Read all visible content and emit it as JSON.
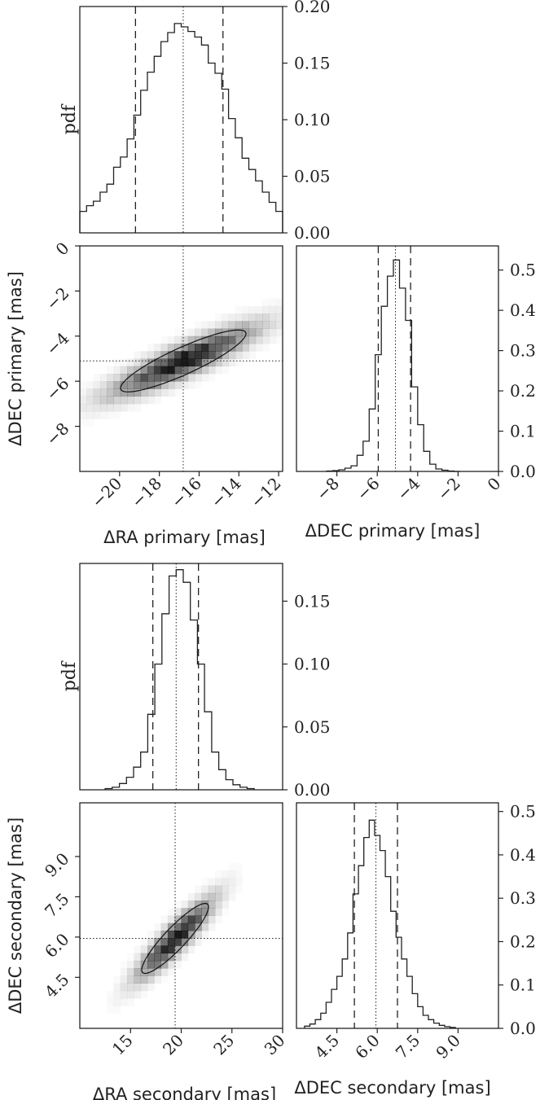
{
  "colors": {
    "ink": "#222222",
    "frame": "#111111",
    "density": "#000000"
  },
  "chart_data": [
    {
      "id": "primary",
      "panels": {
        "ra_hist": {
          "type": "histogram",
          "ylabel": "pdf",
          "xlim": [
            -22,
            -11.8
          ],
          "ylim": [
            0,
            0.2
          ],
          "yticks": [
            0.0,
            0.05,
            0.1,
            0.15,
            0.2
          ],
          "yticklabels": [
            "0.00",
            "0.05",
            "0.10",
            "0.15",
            "0.20"
          ],
          "bin_edges": [
            -22,
            -21.66,
            -21.32,
            -20.98,
            -20.64,
            -20.3,
            -19.96,
            -19.62,
            -19.28,
            -18.94,
            -18.6,
            -18.26,
            -17.92,
            -17.58,
            -17.24,
            -16.9,
            -16.56,
            -16.22,
            -15.88,
            -15.54,
            -15.2,
            -14.86,
            -14.52,
            -14.18,
            -13.84,
            -13.5,
            -13.16,
            -12.82,
            -12.48,
            -12.14,
            -11.8
          ],
          "values": [
            0.019,
            0.024,
            0.028,
            0.036,
            0.043,
            0.058,
            0.067,
            0.083,
            0.104,
            0.126,
            0.142,
            0.156,
            0.169,
            0.177,
            0.185,
            0.182,
            0.178,
            0.173,
            0.166,
            0.15,
            0.141,
            0.127,
            0.101,
            0.084,
            0.066,
            0.056,
            0.046,
            0.036,
            0.027,
            0.019
          ],
          "median": -16.8,
          "interval": [
            -19.2,
            -14.8
          ]
        },
        "joint": {
          "type": "heatmap",
          "xlabel": "ΔRA primary [mas]",
          "ylabel": "ΔDEC primary [mas]",
          "xlim": [
            -22,
            -11.8
          ],
          "ylim": [
            -10,
            0
          ],
          "xticks": [
            -20,
            -18,
            -16,
            -14,
            -12
          ],
          "yticks": [
            0,
            -2,
            -4,
            -6,
            -8
          ],
          "xticklabels": [
            "−20",
            "−18",
            "−16",
            "−14",
            "−12"
          ],
          "yticklabels": [
            "0",
            "−2",
            "−4",
            "−6",
            "−8"
          ],
          "center": [
            -16.8,
            -5.1
          ],
          "sigma": [
            2.3,
            1.0
          ],
          "rho": 0.88,
          "contour_level": 0.39,
          "marker_x": -16.8,
          "marker_y": -5.1
        },
        "dec_hist": {
          "type": "histogram",
          "xlabel": "ΔDEC primary [mas]",
          "xlim": [
            -10,
            0
          ],
          "ylim": [
            0,
            0.56
          ],
          "xticks": [
            -8,
            -6,
            -4,
            -2,
            0
          ],
          "xticklabels": [
            "−8",
            "−6",
            "−4",
            "−2",
            "0"
          ],
          "yticks": [
            0.0,
            0.1,
            0.2,
            0.3,
            0.4,
            0.5
          ],
          "yticklabels": [
            "0.0",
            "0.1",
            "0.2",
            "0.3",
            "0.4",
            "0.5"
          ],
          "bin_edges": [
            -8.5,
            -8.2,
            -7.9,
            -7.6,
            -7.3,
            -7.0,
            -6.7,
            -6.4,
            -6.1,
            -5.8,
            -5.5,
            -5.2,
            -4.9,
            -4.6,
            -4.3,
            -4.0,
            -3.7,
            -3.4,
            -3.1,
            -2.8,
            -2.5,
            -2.2,
            -1.9
          ],
          "values": [
            0.001,
            0.002,
            0.004,
            0.008,
            0.014,
            0.04,
            0.075,
            0.155,
            0.29,
            0.41,
            0.485,
            0.525,
            0.455,
            0.375,
            0.21,
            0.116,
            0.05,
            0.018,
            0.006,
            0.003,
            0.001,
            0.0
          ],
          "median": -5.1,
          "interval": [
            -5.95,
            -4.35
          ]
        }
      }
    },
    {
      "id": "secondary",
      "panels": {
        "ra_hist": {
          "type": "histogram",
          "ylabel": "pdf",
          "xlim": [
            10,
            30
          ],
          "ylim": [
            0,
            0.18
          ],
          "yticks": [
            0.0,
            0.05,
            0.1,
            0.15
          ],
          "yticklabels": [
            "0.00",
            "0.05",
            "0.10",
            "0.15"
          ],
          "bin_edges": [
            12.5,
            13.2,
            13.9,
            14.6,
            15.3,
            16.0,
            16.7,
            17.4,
            18.1,
            18.8,
            19.5,
            20.2,
            20.9,
            21.6,
            22.3,
            23.0,
            23.7,
            24.4,
            25.1,
            25.8,
            26.5,
            27.2
          ],
          "values": [
            0.001,
            0.002,
            0.005,
            0.01,
            0.018,
            0.03,
            0.06,
            0.1,
            0.14,
            0.17,
            0.175,
            0.165,
            0.135,
            0.1,
            0.062,
            0.03,
            0.016,
            0.008,
            0.004,
            0.002,
            0.001
          ],
          "median": 19.5,
          "interval": [
            17.2,
            21.7
          ]
        },
        "joint": {
          "type": "heatmap",
          "xlabel": "ΔRA secondary [mas]",
          "ylabel": "ΔDEC secondary [mas]",
          "xlim": [
            10,
            30
          ],
          "ylim": [
            2.6,
            11
          ],
          "xticks": [
            15,
            20,
            25,
            30
          ],
          "yticks": [
            4.5,
            6.0,
            7.5,
            9.0
          ],
          "xticklabels": [
            "15",
            "20",
            "25",
            "30"
          ],
          "yticklabels": [
            "4.5",
            "6.0",
            "7.5",
            "9.0"
          ],
          "center": [
            19.4,
            5.95
          ],
          "sigma": [
            2.4,
            0.95
          ],
          "rho": 0.9,
          "contour_level": 0.39,
          "marker_x": 19.4,
          "marker_y": 5.95
        },
        "dec_hist": {
          "type": "histogram",
          "xlabel": "ΔDEC secondary [mas]",
          "xlim": [
            3,
            10.5
          ],
          "ylim": [
            0,
            0.52
          ],
          "xticks": [
            4.5,
            6.0,
            7.5,
            9.0
          ],
          "xticklabels": [
            "4.5",
            "6.0",
            "7.5",
            "9.0"
          ],
          "yticks": [
            0.0,
            0.1,
            0.2,
            0.3,
            0.4,
            0.5
          ],
          "yticklabels": [
            "0.0",
            "0.1",
            "0.2",
            "0.3",
            "0.4",
            "0.5"
          ],
          "bin_edges": [
            3.3,
            3.5,
            3.7,
            3.9,
            4.1,
            4.3,
            4.5,
            4.7,
            4.9,
            5.1,
            5.3,
            5.5,
            5.7,
            5.9,
            6.1,
            6.3,
            6.5,
            6.7,
            6.9,
            7.1,
            7.3,
            7.5,
            7.7,
            7.9,
            8.1,
            8.3,
            8.5,
            8.7,
            8.9
          ],
          "values": [
            0.005,
            0.01,
            0.02,
            0.035,
            0.06,
            0.09,
            0.12,
            0.16,
            0.22,
            0.31,
            0.375,
            0.44,
            0.48,
            0.445,
            0.41,
            0.35,
            0.27,
            0.21,
            0.16,
            0.12,
            0.08,
            0.05,
            0.03,
            0.02,
            0.012,
            0.007,
            0.004,
            0.002
          ],
          "median": 5.95,
          "interval": [
            5.15,
            6.75
          ]
        }
      }
    }
  ]
}
